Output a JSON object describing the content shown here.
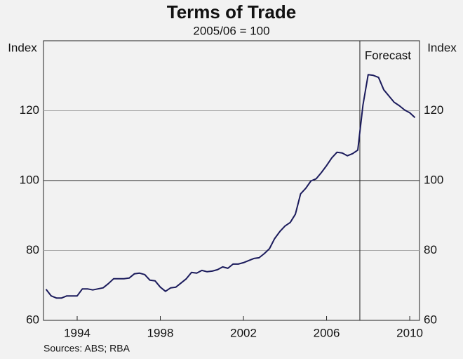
{
  "chart_data": {
    "type": "line",
    "title": "Terms of Trade",
    "subtitle": "2005/06 = 100",
    "y_label_left": "Index",
    "y_label_right": "Index",
    "annotation": "Forecast",
    "forecast_start": 2007.6,
    "reference_line": 100,
    "source": "Sources: ABS; RBA",
    "x": [
      1992.5,
      1992.75,
      1993,
      1993.25,
      1993.5,
      1993.75,
      1994,
      1994.25,
      1994.5,
      1994.75,
      1995,
      1995.25,
      1995.5,
      1995.75,
      1996,
      1996.25,
      1996.5,
      1996.75,
      1997,
      1997.25,
      1997.5,
      1997.75,
      1998,
      1998.25,
      1998.5,
      1998.75,
      1999,
      1999.25,
      1999.5,
      1999.75,
      2000,
      2000.25,
      2000.5,
      2000.75,
      2001,
      2001.25,
      2001.5,
      2001.75,
      2002,
      2002.25,
      2002.5,
      2002.75,
      2003,
      2003.25,
      2003.5,
      2003.75,
      2004,
      2004.25,
      2004.5,
      2004.75,
      2005,
      2005.25,
      2005.5,
      2005.75,
      2006,
      2006.25,
      2006.5,
      2006.75,
      2007,
      2007.25,
      2007.5,
      2007.75,
      2008,
      2008.25,
      2008.5,
      2008.75,
      2009,
      2009.25,
      2009.5,
      2009.75,
      2010,
      2010.25
    ],
    "series": [
      {
        "name": "Terms of Trade",
        "color": "#1b1b5c",
        "values": [
          68.9,
          67,
          66.4,
          66.4,
          67,
          67,
          67,
          69,
          69,
          68.7,
          69,
          69.3,
          70.5,
          71.9,
          71.9,
          71.9,
          72.1,
          73.3,
          73.5,
          73.1,
          71.5,
          71.3,
          69.5,
          68.3,
          69.3,
          69.5,
          70.7,
          71.9,
          73.7,
          73.5,
          74.3,
          73.9,
          74.1,
          74.5,
          75.3,
          74.9,
          76.1,
          76.1,
          76.5,
          77.1,
          77.7,
          77.9,
          79.1,
          80.5,
          83.4,
          85.4,
          87,
          88,
          90.4,
          96.2,
          97.8,
          99.9,
          100.5,
          102.3,
          104.3,
          106.5,
          108.1,
          107.9,
          107.1,
          107.7,
          108.7,
          121.6,
          130.3,
          130.1,
          129.5,
          126,
          124.2,
          122.4,
          121.4,
          120.2,
          119.4,
          118
        ]
      }
    ],
    "xlim": [
      1992.38,
      2010.47
    ],
    "xticks": [
      1994,
      1998,
      2002,
      2006,
      2010
    ],
    "ylim": [
      60,
      140
    ],
    "yticks": [
      60,
      80,
      100,
      120
    ],
    "grid": true
  }
}
